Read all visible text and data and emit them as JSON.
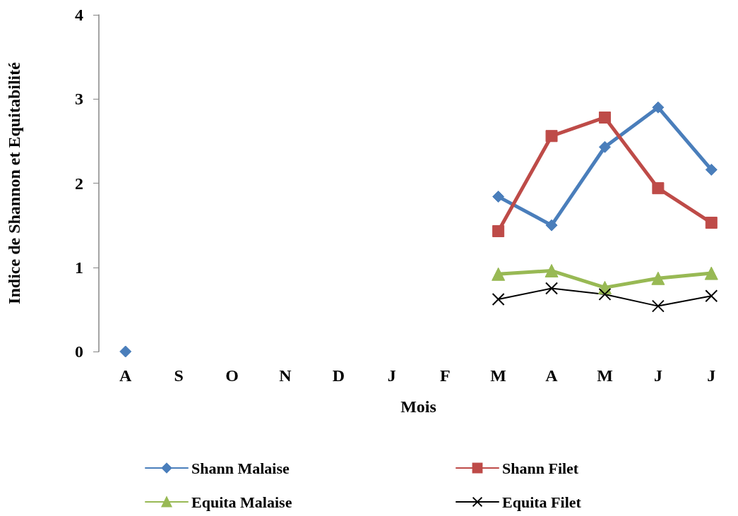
{
  "chart_data": {
    "type": "line",
    "xlabel": "Mois",
    "ylabel": "Indice de Shannon et Equitabilité",
    "categories": [
      "A",
      "S",
      "O",
      "N",
      "D",
      "J",
      "F",
      "M",
      "A",
      "M",
      "J",
      "J"
    ],
    "series": [
      {
        "name": "Shann Malaise",
        "color": "#4a7ebb",
        "marker": "diamond",
        "values": [
          0,
          null,
          null,
          null,
          null,
          null,
          null,
          1.84,
          1.5,
          2.43,
          2.9,
          2.16
        ]
      },
      {
        "name": "Shann Filet",
        "color": "#be4b48",
        "marker": "square",
        "values": [
          null,
          null,
          null,
          null,
          null,
          null,
          null,
          1.43,
          2.56,
          2.78,
          1.94,
          1.53
        ]
      },
      {
        "name": "Equita Malaise",
        "color": "#98b954",
        "marker": "triangle",
        "values": [
          null,
          null,
          null,
          null,
          null,
          null,
          null,
          0.92,
          0.96,
          0.76,
          0.87,
          0.93
        ]
      },
      {
        "name": "Equita Filet",
        "color": "#000000",
        "marker": "cross",
        "values": [
          null,
          null,
          null,
          null,
          null,
          null,
          null,
          0.62,
          0.75,
          0.68,
          0.54,
          0.66
        ]
      }
    ],
    "ylim": [
      0,
      4
    ],
    "yticks": [
      0,
      1,
      2,
      3,
      4
    ],
    "grid": false,
    "legend": "bottom"
  }
}
